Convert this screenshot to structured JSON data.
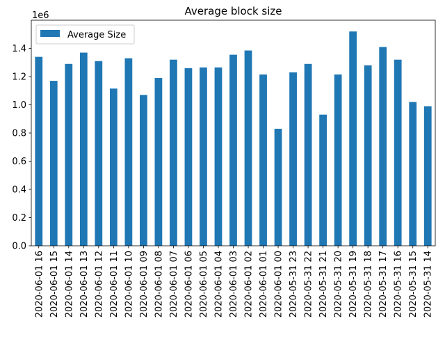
{
  "chart_data": {
    "type": "bar",
    "title": "Average block size",
    "xlabel": "",
    "ylabel": "",
    "y_offset_label": "1e6",
    "ylim": [
      0,
      1.6
    ],
    "yticks": [
      0.0,
      0.2,
      0.4,
      0.6,
      0.8,
      1.0,
      1.2,
      1.4
    ],
    "ytick_labels": [
      "0.0",
      "0.2",
      "0.4",
      "0.6",
      "0.8",
      "1.0",
      "1.2",
      "1.4"
    ],
    "grid": false,
    "legend_position": "top-left",
    "categories": [
      "2020-06-01 16",
      "2020-06-01 15",
      "2020-06-01 14",
      "2020-06-01 13",
      "2020-06-01 12",
      "2020-06-01 11",
      "2020-06-01 10",
      "2020-06-01 09",
      "2020-06-01 08",
      "2020-06-01 07",
      "2020-06-01 06",
      "2020-06-01 05",
      "2020-06-01 04",
      "2020-06-01 03",
      "2020-06-01 02",
      "2020-06-01 01",
      "2020-06-01 00",
      "2020-05-31 23",
      "2020-05-31 22",
      "2020-05-31 21",
      "2020-05-31 20",
      "2020-05-31 19",
      "2020-05-31 18",
      "2020-05-31 17",
      "2020-05-31 16",
      "2020-05-31 15",
      "2020-05-31 14"
    ],
    "series": [
      {
        "name": "Average Size",
        "color": "#1f77b4",
        "values": [
          1.34,
          1.17,
          1.29,
          1.37,
          1.31,
          1.115,
          1.33,
          1.07,
          1.19,
          1.32,
          1.26,
          1.265,
          1.265,
          1.355,
          1.385,
          1.215,
          0.83,
          1.23,
          1.29,
          0.93,
          1.215,
          1.52,
          1.28,
          1.41,
          1.32,
          1.02,
          0.99
        ]
      }
    ]
  }
}
